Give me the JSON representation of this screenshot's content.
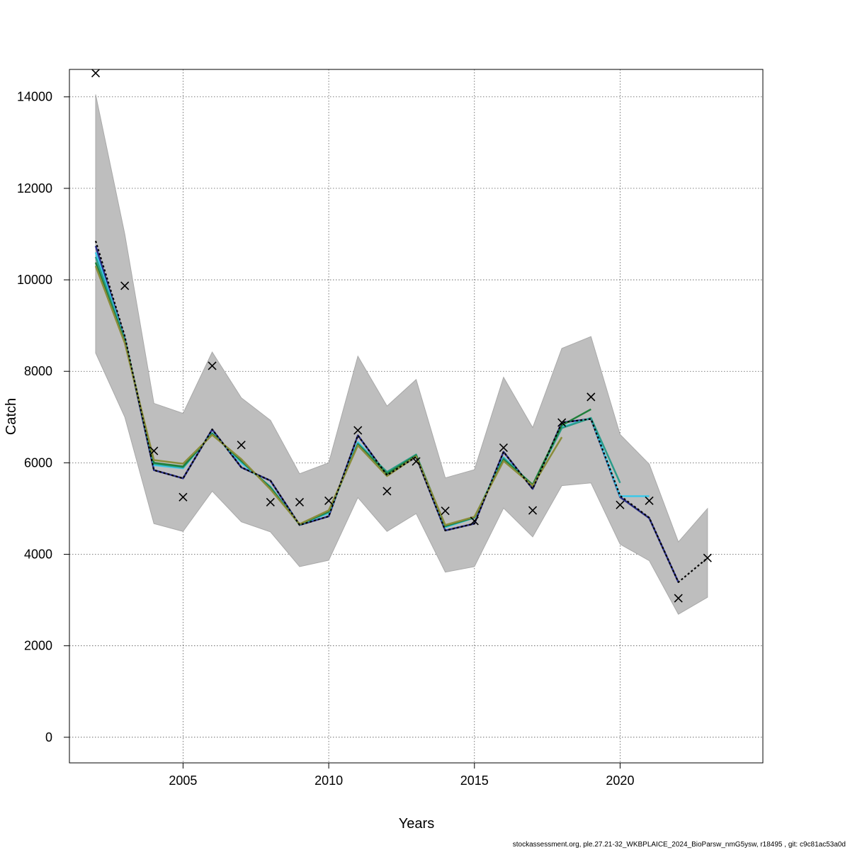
{
  "chart_data": {
    "type": "line",
    "title": "",
    "xlabel": "Years",
    "ylabel": "Catch",
    "xlim": [
      2001.1,
      2024.9
    ],
    "ylim": [
      -560,
      14600
    ],
    "x_ticks": [
      2005,
      2010,
      2015,
      2020
    ],
    "y_ticks": [
      0,
      2000,
      4000,
      6000,
      8000,
      10000,
      12000,
      14000
    ],
    "grid": true,
    "legend": "none",
    "band": {
      "color": "#bebebe",
      "x": [
        2002,
        2003,
        2004,
        2005,
        2006,
        2007,
        2008,
        2009,
        2010,
        2011,
        2012,
        2013,
        2014,
        2015,
        2016,
        2017,
        2018,
        2019,
        2020,
        2021,
        2022,
        2023
      ],
      "upper": [
        14050,
        11000,
        7300,
        7080,
        8420,
        7420,
        6930,
        5760,
        6000,
        8330,
        7240,
        7820,
        5670,
        5850,
        7870,
        6770,
        8500,
        8760,
        6620,
        5970,
        4270,
        5000
      ],
      "lower": [
        8400,
        7000,
        4670,
        4500,
        5380,
        4710,
        4490,
        3730,
        3870,
        5240,
        4500,
        4890,
        3610,
        3730,
        5010,
        4380,
        5500,
        5560,
        4220,
        3860,
        2690,
        3060
      ]
    },
    "series": [
      {
        "color": "#000000",
        "dashed": true,
        "x": [
          2002,
          2003,
          2004,
          2005,
          2006,
          2007,
          2008,
          2009,
          2010,
          2011,
          2012,
          2013,
          2014,
          2015,
          2016,
          2017,
          2018,
          2019,
          2020,
          2021,
          2022,
          2023
        ],
        "values": [
          10850,
          8770,
          5840,
          5660,
          6730,
          5900,
          5610,
          4640,
          4830,
          6600,
          5730,
          6130,
          4520,
          4670,
          6240,
          5430,
          6880,
          6960,
          5280,
          4800,
          3390,
          3920
        ]
      },
      {
        "color": "#2b2f8a",
        "x": [
          2002,
          2003,
          2004,
          2005,
          2006,
          2007,
          2008,
          2009,
          2010,
          2011,
          2012,
          2013,
          2014,
          2015,
          2016,
          2017,
          2018,
          2019,
          2020,
          2021,
          2022
        ],
        "values": [
          10740,
          8720,
          5840,
          5660,
          6730,
          5900,
          5610,
          4640,
          4830,
          6600,
          5730,
          6130,
          4520,
          4670,
          6240,
          5430,
          6880,
          6960,
          5250,
          4790,
          3390
        ]
      },
      {
        "color": "#3cc8e8",
        "x": [
          2002,
          2003,
          2004,
          2005,
          2006,
          2007,
          2008,
          2009,
          2010,
          2011,
          2012,
          2013,
          2014,
          2015,
          2016,
          2017,
          2018,
          2019,
          2020,
          2021
        ],
        "values": [
          10600,
          8700,
          5950,
          5880,
          6650,
          6000,
          5480,
          4650,
          4900,
          6450,
          5780,
          6170,
          4590,
          4800,
          6120,
          5500,
          6780,
          6980,
          5270,
          5270
        ]
      },
      {
        "color": "#2a9c8a",
        "x": [
          2002,
          2003,
          2004,
          2005,
          2006,
          2007,
          2008,
          2009,
          2010,
          2011,
          2012,
          2013,
          2014,
          2015,
          2016,
          2017,
          2018,
          2019,
          2020
        ],
        "values": [
          10500,
          8680,
          5980,
          5900,
          6640,
          6030,
          5470,
          4650,
          4920,
          6420,
          5800,
          6180,
          4610,
          4800,
          6100,
          5520,
          6760,
          6980,
          5560
        ]
      },
      {
        "color": "#1f7f3a",
        "x": [
          2002,
          2003,
          2004,
          2005,
          2006,
          2007,
          2008,
          2009,
          2010,
          2011,
          2012,
          2013,
          2014,
          2015,
          2016,
          2017,
          2018,
          2019
        ],
        "values": [
          10380,
          8650,
          6000,
          5920,
          6630,
          6050,
          5450,
          4650,
          4940,
          6400,
          5760,
          6160,
          4620,
          4810,
          6070,
          5520,
          6820,
          7170
        ]
      },
      {
        "color": "#8a8c3a",
        "x": [
          2002,
          2003,
          2004,
          2005,
          2006,
          2007,
          2008,
          2009,
          2010,
          2011,
          2012,
          2013,
          2014,
          2015,
          2016,
          2017,
          2018
        ],
        "values": [
          10300,
          8620,
          6060,
          5980,
          6610,
          6080,
          5420,
          4660,
          4960,
          6380,
          5710,
          6140,
          4640,
          4820,
          6040,
          5500,
          6560
        ]
      }
    ],
    "observations": {
      "x": [
        2002,
        2003,
        2004,
        2005,
        2006,
        2007,
        2008,
        2009,
        2010,
        2011,
        2012,
        2013,
        2014,
        2015,
        2016,
        2017,
        2018,
        2019,
        2020,
        2021,
        2022,
        2023
      ],
      "values": [
        14520,
        9870,
        6260,
        5250,
        8120,
        6390,
        5140,
        5140,
        5170,
        6710,
        5380,
        6030,
        4950,
        4730,
        6330,
        4960,
        6880,
        7440,
        5080,
        5170,
        3040,
        3920
      ]
    }
  },
  "footer": "stockassessment.org, ple.27.21-32_WKBPLAICE_2024_BioParsw_nmG5ysw, r18495 , git: c9c81ac53a0d"
}
